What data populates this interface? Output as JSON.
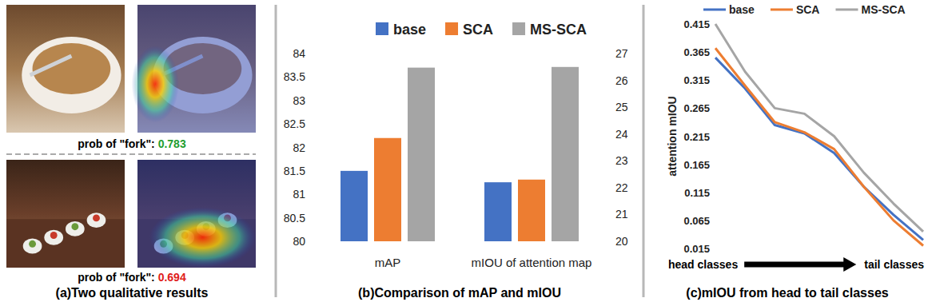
{
  "qualitative": {
    "title": "(a)Two qualitative results",
    "results": [
      {
        "label": "prob of \"fork\":",
        "value": 0.783,
        "color": "#1f9e2f"
      },
      {
        "label": "prob of \"fork\":",
        "value": 0.694,
        "color": "#e0201b"
      }
    ]
  },
  "chart_data": [
    {
      "type": "bar",
      "title": "(b)Comparison of mAP and mIOU",
      "categories": [
        "mAP",
        "mIOU of attention map"
      ],
      "series": [
        {
          "name": "base",
          "color": "#4472c4",
          "values": [
            81.5,
            null
          ]
        },
        {
          "name": "SCA",
          "color": "#ed7d31",
          "values": [
            82.2,
            null
          ]
        },
        {
          "name": "MS-SCA",
          "color": "#a5a5a5",
          "values": [
            83.7,
            null
          ]
        },
        {
          "color": "#4472c4",
          "values": [
            null,
            22.2
          ],
          "axis": "y2"
        },
        {
          "color": "#ed7d31",
          "values": [
            null,
            22.3
          ],
          "axis": "y2"
        },
        {
          "color": "#a5a5a5",
          "values": [
            null,
            26.5
          ],
          "axis": "y2"
        }
      ],
      "ylim": [
        80,
        84
      ],
      "yticks": [
        80,
        80.5,
        81,
        81.5,
        82,
        82.5,
        83,
        83.5,
        84
      ],
      "y2lim": [
        20,
        27
      ],
      "y2ticks": [
        20,
        21,
        22,
        23,
        24,
        25,
        26,
        27
      ],
      "legend": "top",
      "grid": false
    },
    {
      "type": "line",
      "title": "(c)mIOU from head to tail classes",
      "ylabel": "attention mIOU",
      "annotations": [
        "head classes",
        "tail classes"
      ],
      "categories": [
        null,
        null,
        null,
        null,
        null,
        null,
        null,
        null
      ],
      "series": [
        {
          "name": "base",
          "color": "#4472c4",
          "values": [
            0.355,
            0.3,
            0.235,
            0.22,
            0.185,
            0.125,
            0.075,
            0.03
          ]
        },
        {
          "name": "SCA",
          "color": "#ed7d31",
          "values": [
            0.372,
            0.305,
            0.24,
            0.222,
            0.192,
            0.125,
            0.065,
            0.02
          ]
        },
        {
          "name": "MS-SCA",
          "color": "#a5a5a5",
          "values": [
            0.415,
            0.33,
            0.265,
            0.255,
            0.215,
            0.15,
            0.095,
            0.045
          ]
        }
      ],
      "ylim": [
        0.015,
        0.415
      ],
      "yticks": [
        0.015,
        0.065,
        0.115,
        0.165,
        0.215,
        0.265,
        0.315,
        0.365,
        0.415
      ],
      "legend": "top",
      "grid": false
    }
  ]
}
